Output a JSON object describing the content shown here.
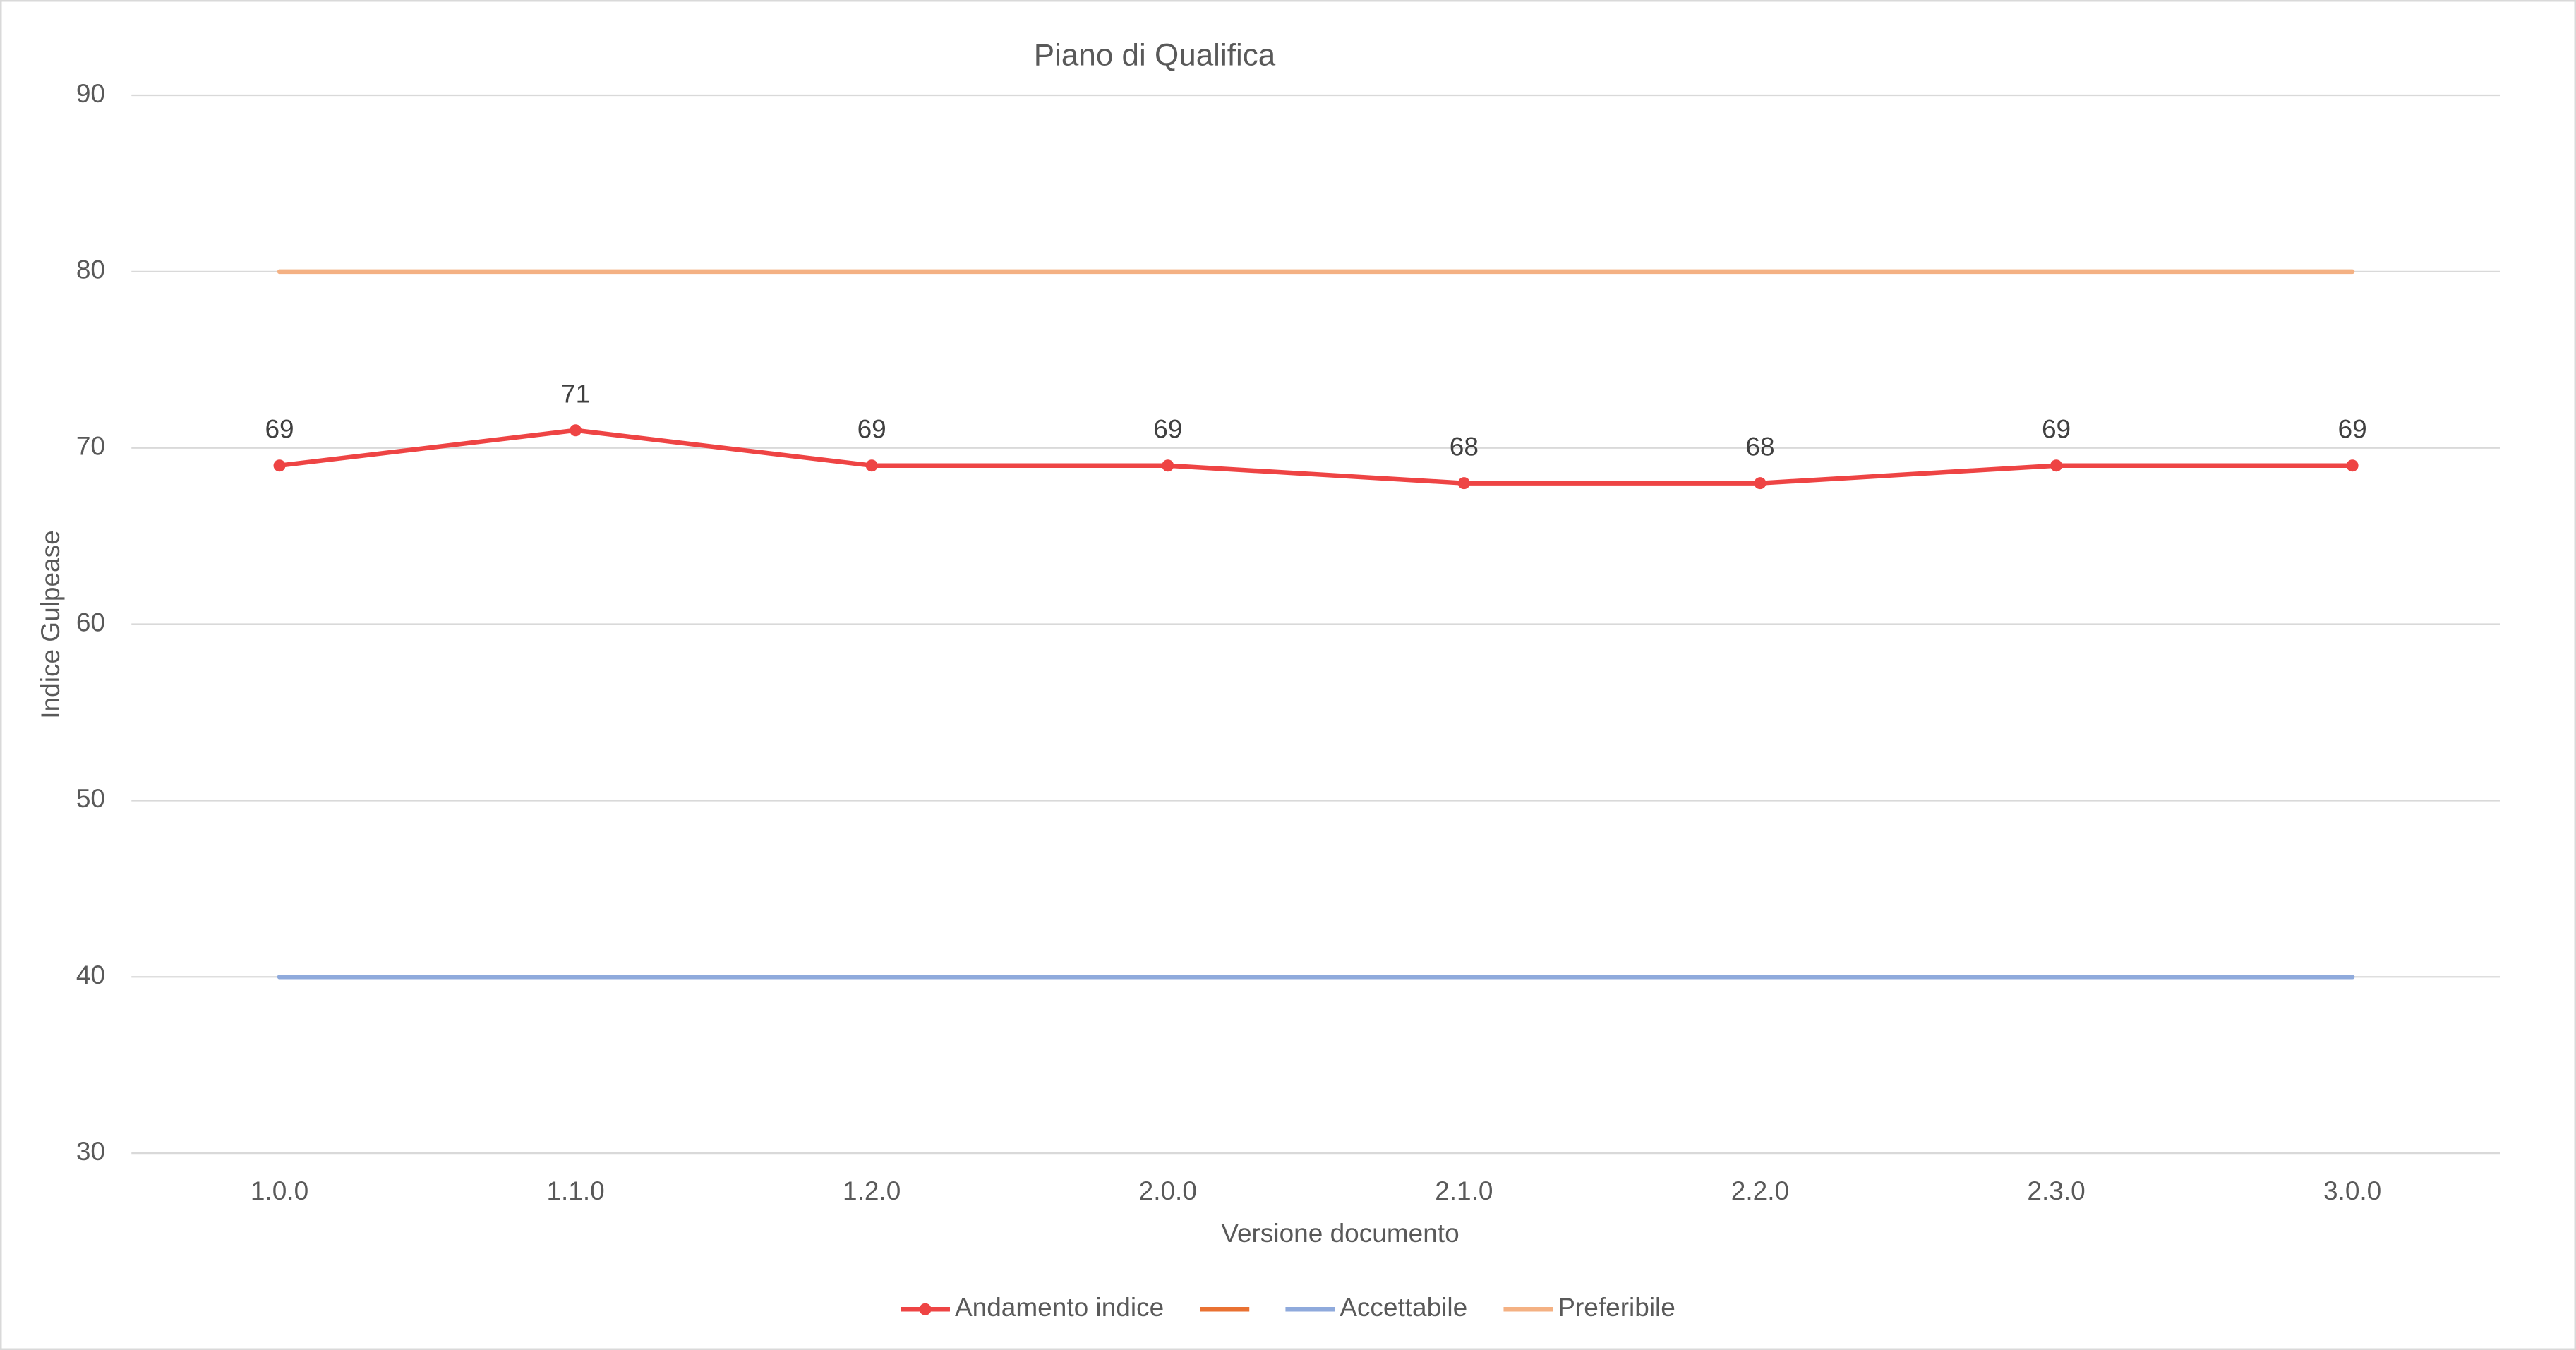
{
  "chart_data": {
    "type": "line",
    "title": "Piano di Qualifica",
    "x_label": "Versione documento",
    "y_label": "Indice Gulpease",
    "categories": [
      "1.0.0",
      "1.1.0",
      "1.2.0",
      "2.0.0",
      "2.1.0",
      "2.2.0",
      "2.3.0",
      "3.0.0"
    ],
    "series": [
      {
        "name": "Andamento indice",
        "color": "#ee4444",
        "markers": true,
        "data_labels": true,
        "values": [
          69,
          71,
          69,
          69,
          68,
          68,
          69,
          69
        ]
      },
      {
        "color": "#e97132",
        "values": [
          null,
          null,
          null,
          null,
          null,
          null,
          null,
          null
        ]
      },
      {
        "name": "Accettabile",
        "color": "#8faadc",
        "values": [
          40,
          40,
          40,
          40,
          40,
          40,
          40,
          40
        ]
      },
      {
        "name": "Preferibile",
        "color": "#f4b183",
        "values": [
          80,
          80,
          80,
          80,
          80,
          80,
          80,
          80
        ]
      }
    ],
    "ylim": [
      30,
      90
    ],
    "yticks": [
      30,
      40,
      50,
      60,
      70,
      80,
      90
    ],
    "grid": true,
    "legend": "bottom"
  }
}
